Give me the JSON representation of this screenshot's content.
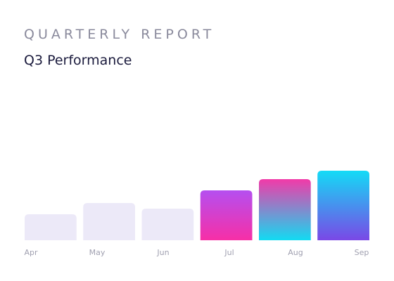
{
  "chart_data": {
    "type": "bar",
    "title": "QUARTERLY REPORT",
    "subtitle": "Q3 Performance",
    "categories": [
      "Apr",
      "May",
      "Jun",
      "Jul",
      "Aug",
      "Sep"
    ],
    "values": [
      37,
      53,
      45,
      71,
      87,
      99
    ],
    "colors": [
      [
        "#ece9f8",
        "#ece9f8"
      ],
      [
        "#ece9f8",
        "#ece9f8"
      ],
      [
        "#ece9f8",
        "#ece9f8"
      ],
      [
        "#b54ff0",
        "#f72fa6"
      ],
      [
        "#f23aa8",
        "#12dbf2"
      ],
      [
        "#14dbf6",
        "#7a48e6"
      ]
    ]
  }
}
